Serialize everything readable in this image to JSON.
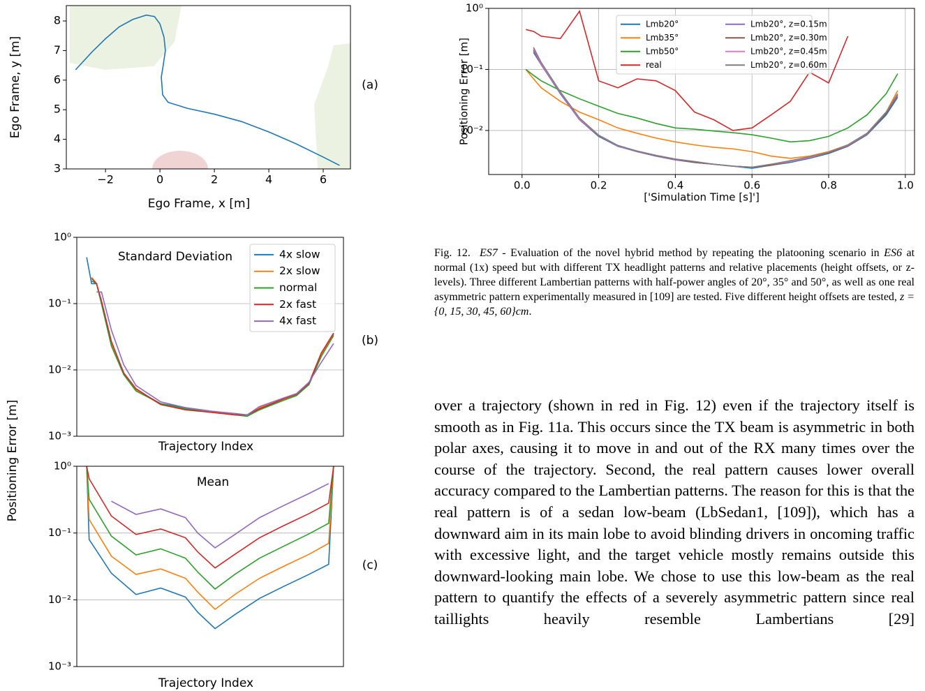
{
  "chart_data": [
    {
      "type": "line",
      "xlabel": "Ego Frame, x [m]",
      "ylabel": "Ego Frame, y [m]",
      "annotations": [
        "(a)"
      ],
      "x": [
        -3.1,
        -2.5,
        -2,
        -1.5,
        -1,
        -0.5,
        -0.2,
        0,
        0.15,
        0.2,
        0.12,
        0.05,
        0.1,
        0.3,
        1,
        2,
        3,
        4,
        5,
        6,
        6.6
      ],
      "values": [
        6.35,
        6.95,
        7.4,
        7.8,
        8.05,
        8.2,
        8.15,
        7.9,
        7.45,
        7,
        6.5,
        6.1,
        5.5,
        5.25,
        5.05,
        4.85,
        4.6,
        4.25,
        3.85,
        3.4,
        3.12
      ],
      "color": "#1f77b4",
      "xlim": [
        -3.44,
        7.0
      ],
      "ylim": [
        3,
        8.52
      ],
      "xticks": [
        {
          "value": -2,
          "label": "−2"
        },
        0,
        2,
        4,
        6
      ],
      "yticks": [
        3,
        4,
        5,
        6,
        7,
        8
      ],
      "grid": "none"
    },
    {
      "type": "line",
      "xlabel": "['Simulation Time [s]']",
      "ylabel": "Positioning Error [m]",
      "log_y": true,
      "grid": "both",
      "legend": "upper center",
      "legend_columns": 2,
      "x": [
        0.01,
        0.03,
        0.05,
        0.1,
        0.15,
        0.2,
        0.25,
        0.3,
        0.35,
        0.4,
        0.45,
        0.5,
        0.55,
        0.6,
        0.65,
        0.7,
        0.75,
        0.8,
        0.85,
        0.9,
        0.95,
        0.98
      ],
      "series": [
        {
          "name": "Lmb20°",
          "color": "#1f77b4",
          "values": [
            null,
            0.19,
            0.12,
            0.04,
            0.015,
            0.008,
            0.0055,
            0.0045,
            0.0038,
            0.0033,
            0.003,
            0.0028,
            0.0026,
            0.0024,
            0.0027,
            0.003,
            0.0035,
            0.0042,
            0.0055,
            0.0085,
            0.018,
            0.035
          ]
        },
        {
          "name": "Lmb35°",
          "color": "#ff7f0e",
          "values": [
            0.1,
            0.07,
            0.05,
            0.03,
            0.02,
            0.015,
            0.011,
            0.009,
            0.0075,
            0.0065,
            0.0058,
            0.0053,
            0.005,
            0.0045,
            0.0038,
            0.0035,
            0.0038,
            0.0045,
            0.0058,
            0.009,
            0.02,
            0.045
          ]
        },
        {
          "name": "Lmb50°",
          "color": "#2ca02c",
          "values": [
            0.1,
            0.08,
            0.065,
            0.045,
            0.033,
            0.025,
            0.019,
            0.016,
            0.013,
            0.011,
            0.0105,
            0.0098,
            0.0092,
            0.0085,
            0.0075,
            0.0065,
            0.0068,
            0.008,
            0.011,
            0.018,
            0.04,
            0.085
          ]
        },
        {
          "name": "real",
          "color": "#d62728",
          "values": [
            0.45,
            0.42,
            0.35,
            0.32,
            0.9,
            0.065,
            0.05,
            0.07,
            0.065,
            0.045,
            0.02,
            0.015,
            0.01,
            0.011,
            0.018,
            0.03,
            0.09,
            0.06,
            0.35,
            null,
            null,
            null
          ]
        },
        {
          "name": "Lmb20°, z=0.15m",
          "color": "#9467bd",
          "values": [
            null,
            0.2,
            0.12,
            0.041,
            0.015,
            0.0082,
            0.0056,
            0.0045,
            0.0038,
            0.0033,
            0.003,
            0.0028,
            0.0026,
            0.0025,
            0.0027,
            0.0031,
            0.0036,
            0.0043,
            0.0056,
            0.0087,
            0.019,
            0.037
          ]
        },
        {
          "name": "Lmb20°, z=0.30m",
          "color": "#8c564b",
          "values": [
            null,
            0.21,
            0.125,
            0.042,
            0.0155,
            0.0082,
            0.0056,
            0.0046,
            0.0039,
            0.0034,
            0.003,
            0.0028,
            0.0026,
            0.0025,
            0.0027,
            0.0031,
            0.0036,
            0.0043,
            0.0056,
            0.0088,
            0.019,
            0.038
          ]
        },
        {
          "name": "Lmb20°, z=0.45m",
          "color": "#e377c2",
          "values": [
            null,
            0.22,
            0.125,
            0.042,
            0.0155,
            0.0083,
            0.0056,
            0.0046,
            0.0039,
            0.0034,
            0.0031,
            0.0028,
            0.0026,
            0.0025,
            0.0028,
            0.0031,
            0.0036,
            0.0044,
            0.0057,
            0.0089,
            0.02,
            0.039
          ]
        },
        {
          "name": "Lmb20°, z=0.60m",
          "color": "#7f7f7f",
          "values": [
            null,
            0.23,
            0.13,
            0.043,
            0.016,
            0.0084,
            0.0057,
            0.0046,
            0.0039,
            0.0034,
            0.0031,
            0.0028,
            0.0026,
            0.0025,
            0.0028,
            0.0032,
            0.0037,
            0.0044,
            0.0058,
            0.009,
            0.02,
            0.04
          ]
        }
      ],
      "xlim": [
        -0.087,
        1.024
      ],
      "ylim": [
        0.0019,
        1
      ],
      "xticks": [
        {
          "value": 0,
          "label": "0.0"
        },
        0.2,
        0.4,
        0.6,
        0.8,
        {
          "value": 1,
          "label": "1.0"
        }
      ],
      "yticks": [
        {
          "value": 0.01,
          "label": "10⁻²"
        },
        {
          "value": 0.1,
          "label": "10⁻¹"
        },
        {
          "value": 1,
          "label": "10⁰"
        }
      ]
    },
    {
      "type": "line",
      "xlabel": "Trajectory Index",
      "ylabel": "Positioning Error [m]",
      "annotations": [
        "Standard Deviation",
        "(b)"
      ],
      "log_y": true,
      "grid": "y",
      "legend": "upper right",
      "legend_columns": 1,
      "x": [
        0,
        2,
        4,
        6,
        10,
        15,
        20,
        30,
        40,
        50,
        60,
        65,
        70,
        80,
        85,
        90,
        95,
        100
      ],
      "series": [
        {
          "name": "4x slow",
          "color": "#1f77b4",
          "values": [
            0.5,
            0.2,
            0.2,
            0.1,
            0.025,
            0.009,
            0.005,
            0.0031,
            0.0027,
            0.0024,
            0.0021,
            0.0021,
            0.0026,
            0.0036,
            0.0042,
            0.006,
            0.016,
            0.035
          ]
        },
        {
          "name": "2x slow",
          "color": "#ff7f0e",
          "values": [
            null,
            0.25,
            0.2,
            0.1,
            0.025,
            0.009,
            0.005,
            0.003,
            0.0026,
            0.0023,
            0.0022,
            0.0021,
            0.0027,
            0.0036,
            0.0042,
            0.0062,
            0.017,
            0.034
          ]
        },
        {
          "name": "normal",
          "color": "#2ca02c",
          "values": [
            null,
            0.22,
            0.2,
            0.1,
            0.023,
            0.0085,
            0.0048,
            0.0031,
            0.0026,
            0.0023,
            0.0021,
            0.002,
            0.0025,
            0.0035,
            0.0041,
            0.006,
            0.016,
            0.033
          ]
        },
        {
          "name": "2x fast",
          "color": "#d62728",
          "values": [
            null,
            0.24,
            0.2,
            0.11,
            0.027,
            0.009,
            0.0052,
            0.003,
            0.0025,
            0.0023,
            0.0021,
            0.0021,
            0.0026,
            0.0037,
            0.0043,
            0.0063,
            0.018,
            0.036
          ]
        },
        {
          "name": "4x fast",
          "color": "#9467bd",
          "values": [
            null,
            null,
            0.15,
            0.15,
            0.04,
            0.012,
            0.0058,
            0.0033,
            0.0027,
            0.0024,
            0.0022,
            0.0021,
            0.0028,
            0.0038,
            0.0044,
            0.0065,
            0.013,
            0.025
          ]
        }
      ],
      "xlim": [
        -4,
        104
      ],
      "ylim": [
        0.001,
        1
      ],
      "yticks": [
        {
          "value": 0.001,
          "label": "10⁻³"
        },
        {
          "value": 0.01,
          "label": "10⁻²"
        },
        {
          "value": 0.1,
          "label": "10⁻¹"
        },
        {
          "value": 1,
          "label": "10⁰"
        }
      ]
    },
    {
      "type": "line",
      "xlabel": "Trajectory Index",
      "annotations": [
        "Mean",
        "(c)"
      ],
      "log_y": true,
      "grid": "y",
      "x": [
        0,
        1,
        10,
        20,
        30,
        40,
        45,
        52,
        60,
        70,
        80,
        90,
        98,
        100
      ],
      "series": [
        {
          "color": "#1f77b4",
          "values": [
            1,
            0.08,
            0.025,
            0.012,
            0.015,
            0.011,
            0.0065,
            0.0037,
            0.006,
            0.0105,
            0.016,
            0.024,
            0.034,
            1
          ]
        },
        {
          "color": "#ff7f0e",
          "values": [
            1,
            0.16,
            0.045,
            0.024,
            0.029,
            0.021,
            0.013,
            0.0072,
            0.012,
            0.021,
            0.032,
            0.048,
            0.07,
            1
          ]
        },
        {
          "color": "#2ca02c",
          "values": [
            1,
            0.32,
            0.09,
            0.047,
            0.058,
            0.042,
            0.026,
            0.0145,
            0.024,
            0.042,
            0.064,
            0.097,
            0.14,
            1
          ]
        },
        {
          "color": "#d62728",
          "values": [
            1,
            0.65,
            0.18,
            0.095,
            0.115,
            0.085,
            0.052,
            0.03,
            0.048,
            0.085,
            0.13,
            0.195,
            0.28,
            1
          ]
        },
        {
          "color": "#9467bd",
          "values": [
            null,
            null,
            0.3,
            0.19,
            0.23,
            0.17,
            0.1,
            0.06,
            0.095,
            0.17,
            0.26,
            0.39,
            0.55,
            null
          ]
        }
      ],
      "xlim": [
        -4,
        104
      ],
      "ylim": [
        0.001,
        1
      ],
      "yticks": [
        {
          "value": 0.001,
          "label": "10⁻³"
        },
        {
          "value": 0.01,
          "label": "10⁻²"
        },
        {
          "value": 0.1,
          "label": "10⁻¹"
        },
        {
          "value": 1,
          "label": "10⁰"
        }
      ]
    }
  ],
  "caption": {
    "label": "Fig. 12.",
    "parts": [
      "ES7",
      "- Evaluation of the novel hybrid method by repeating the platooning scenario in",
      "ES6",
      "at normal (1x) speed but with different TX headlight patterns and relative placements (height offsets, or z-levels). Three different Lambertian patterns with half-power angles of 20°, 35° and 50°, as well as one real asymmetric pattern experimentally measured in [109] are tested. Five different height offsets are tested,",
      "z = {0, 15, 30, 45, 60}cm",
      "."
    ]
  },
  "body_text": "over a trajectory (shown in red in Fig. 12) even if the trajectory itself is smooth as in Fig. 11a. This occurs since the TX beam is asymmetric in both polar axes, causing it to move in and out of the RX many times over the course of the trajectory. Second, the real pattern causes lower overall accuracy compared to the Lambertian patterns. The reason for this is that the real pattern is of a sedan low-beam (LbSedan1, [109]), which has a downward aim in its main lobe to avoid blinding drivers in oncoming traffic with excessive light, and the target vehicle mostly remains outside this downward-looking main lobe. We chose to use this low-beam as the real pattern to quantify the effects of a severely asymmetric pattern since real taillights heavily resemble Lambertians [29]"
}
